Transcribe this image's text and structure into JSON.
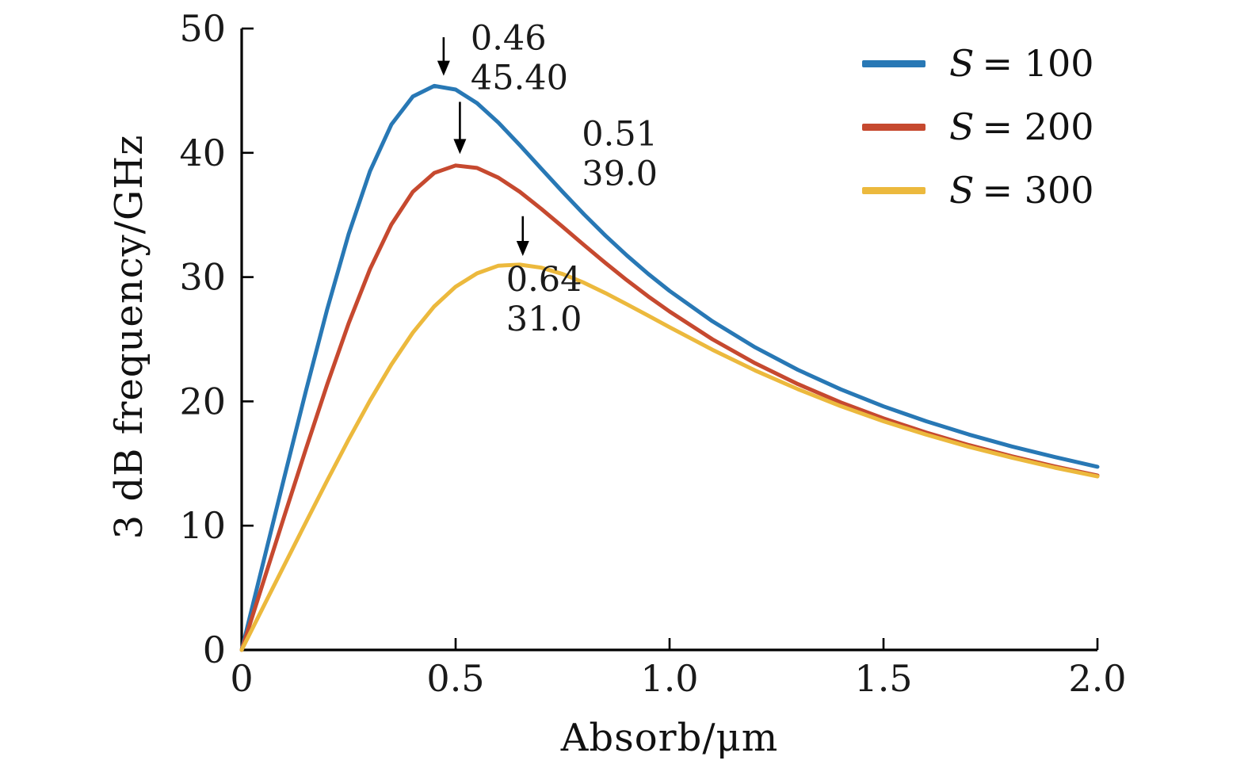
{
  "chart_data": {
    "type": "line",
    "title": "",
    "xlabel": "Absorb/μm",
    "ylabel": "3 dB frequency/GHz",
    "xlim": [
      0,
      2
    ],
    "ylim": [
      0,
      50
    ],
    "grid": false,
    "legend_position": "top-right",
    "xticks": [
      0,
      0.5,
      1.0,
      1.5,
      2.0
    ],
    "xtick_labels": [
      "0",
      "0.5",
      "1.0",
      "1.5",
      "2.0"
    ],
    "yticks": [
      0,
      10,
      20,
      30,
      40,
      50
    ],
    "ytick_labels": [
      "0",
      "10",
      "20",
      "30",
      "40",
      "50"
    ],
    "x": [
      0,
      0.05,
      0.1,
      0.15,
      0.2,
      0.25,
      0.3,
      0.35,
      0.4,
      0.45,
      0.5,
      0.55,
      0.6,
      0.65,
      0.7,
      0.75,
      0.8,
      0.85,
      0.9,
      0.95,
      1.0,
      1.1,
      1.2,
      1.3,
      1.4,
      1.5,
      1.6,
      1.7,
      1.8,
      1.9,
      2.0
    ],
    "series": [
      {
        "name": "S = 100",
        "symbol": "S",
        "rest": "= 100",
        "color": "#2878b5",
        "values": [
          0,
          6.98,
          13.94,
          20.82,
          27.43,
          33.46,
          38.53,
          42.28,
          44.53,
          45.38,
          45.09,
          44.0,
          42.43,
          40.62,
          38.73,
          36.86,
          35.05,
          33.34,
          31.75,
          30.26,
          28.89,
          26.45,
          24.35,
          22.54,
          20.97,
          19.6,
          18.4,
          17.33,
          16.37,
          15.52,
          14.74
        ]
      },
      {
        "name": "S = 200",
        "symbol": "S",
        "rest": "= 200",
        "color": "#c6492f",
        "values": [
          0,
          5.41,
          10.81,
          16.16,
          21.38,
          26.28,
          30.65,
          34.24,
          36.86,
          38.38,
          38.98,
          38.78,
          38.0,
          36.86,
          35.5,
          34.05,
          32.58,
          31.14,
          29.76,
          28.45,
          27.23,
          25.0,
          23.07,
          21.39,
          19.92,
          18.63,
          17.49,
          16.48,
          15.58,
          14.77,
          14.04
        ]
      },
      {
        "name": "S = 300",
        "symbol": "S",
        "rest": "= 300",
        "color": "#ecb93d",
        "values": [
          0,
          3.43,
          6.85,
          10.26,
          13.64,
          16.93,
          20.07,
          22.97,
          25.53,
          27.64,
          29.23,
          30.3,
          30.92,
          31.0,
          30.76,
          30.25,
          29.55,
          28.72,
          27.82,
          26.9,
          25.97,
          24.16,
          22.49,
          20.98,
          19.62,
          18.4,
          17.32,
          16.34,
          15.47,
          14.67,
          13.96
        ]
      }
    ],
    "peaks": [
      {
        "series": "S = 100",
        "x": 0.46,
        "y": 45.4
      },
      {
        "series": "S = 200",
        "x": 0.51,
        "y": 39.0
      },
      {
        "series": "S = 300",
        "x": 0.64,
        "y": 31.0
      }
    ],
    "annotations": [
      {
        "label_lines": [
          "0.46",
          "45.40"
        ],
        "text_x": 0.535,
        "text_y": 48.3,
        "arrow": {
          "x": 0.472,
          "from_y": 49.3,
          "to_y": 46.2
        }
      },
      {
        "label_lines": [
          "0.51",
          "39.0"
        ],
        "text_x": 0.795,
        "text_y": 40.6,
        "arrow": {
          "x": 0.51,
          "from_y": 44.1,
          "to_y": 39.9
        }
      },
      {
        "label_lines": [
          "0.64",
          "31.0"
        ],
        "text_x": 0.618,
        "text_y": 28.9,
        "arrow": {
          "x": 0.657,
          "from_y": 34.9,
          "to_y": 31.7
        }
      }
    ],
    "axis_color": "#000000",
    "text_color": "#1a1a1a"
  }
}
